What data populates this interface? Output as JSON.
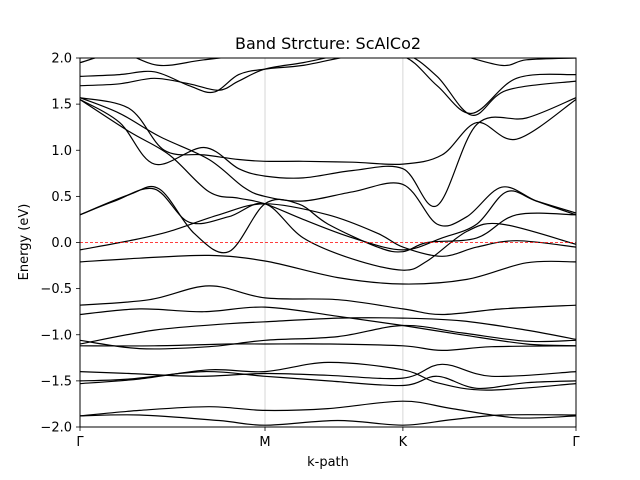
{
  "chart_data": {
    "type": "line",
    "title": "Band Strcture: ScAlCo2",
    "xlabel": "k-path",
    "ylabel": "Energy (eV)",
    "xlim": [
      0,
      1
    ],
    "ylim": [
      -2.0,
      2.0
    ],
    "x_ticks": [
      {
        "pos": 0.0,
        "label": "Γ"
      },
      {
        "pos": 0.373,
        "label": "M"
      },
      {
        "pos": 0.651,
        "label": "K"
      },
      {
        "pos": 1.0,
        "label": "Γ"
      }
    ],
    "y_ticks": [
      {
        "value": 2.0,
        "label": "2.0"
      },
      {
        "value": 1.5,
        "label": "1.5"
      },
      {
        "value": 1.0,
        "label": "1.0"
      },
      {
        "value": 0.5,
        "label": "0.5"
      },
      {
        "value": 0.0,
        "label": "0.0"
      },
      {
        "value": -0.5,
        "label": "−0.5"
      },
      {
        "value": -1.0,
        "label": "−1.0"
      },
      {
        "value": -1.5,
        "label": "−1.5"
      },
      {
        "value": -2.0,
        "label": "−2.0"
      }
    ],
    "fermi_level": 0.0,
    "fermi_color": "#ff0000",
    "band_color": "#000000",
    "grid_color": "#cccccc",
    "series": [
      {
        "name": "band-1",
        "x": [
          0,
          0.12,
          0.28,
          0.373,
          0.52,
          0.651,
          0.75,
          0.85,
          1.0
        ],
        "y": [
          -1.88,
          -1.87,
          -1.93,
          -1.98,
          -1.93,
          -1.98,
          -1.92,
          -1.87,
          -1.87
        ]
      },
      {
        "name": "band-2",
        "x": [
          0,
          0.12,
          0.26,
          0.373,
          0.5,
          0.651,
          0.75,
          0.88,
          1.0
        ],
        "y": [
          -1.88,
          -1.82,
          -1.78,
          -1.82,
          -1.8,
          -1.72,
          -1.8,
          -1.9,
          -1.88
        ]
      },
      {
        "name": "band-3",
        "x": [
          0,
          0.1,
          0.25,
          0.373,
          0.5,
          0.651,
          0.72,
          0.8,
          0.9,
          1.0
        ],
        "y": [
          -1.5,
          -1.48,
          -1.4,
          -1.45,
          -1.5,
          -1.55,
          -1.45,
          -1.58,
          -1.52,
          -1.5
        ]
      },
      {
        "name": "band-4",
        "x": [
          0,
          0.1,
          0.24,
          0.373,
          0.5,
          0.651,
          0.73,
          0.83,
          1.0
        ],
        "y": [
          -1.4,
          -1.42,
          -1.45,
          -1.42,
          -1.44,
          -1.47,
          -1.32,
          -1.45,
          -1.4
        ]
      },
      {
        "name": "band-5",
        "x": [
          0,
          0.12,
          0.26,
          0.373,
          0.5,
          0.651,
          0.72,
          0.82,
          1.0
        ],
        "y": [
          -1.53,
          -1.48,
          -1.38,
          -1.4,
          -1.3,
          -1.38,
          -1.52,
          -1.6,
          -1.53
        ]
      },
      {
        "name": "band-6",
        "x": [
          0,
          0.15,
          0.3,
          0.373,
          0.5,
          0.651,
          0.73,
          0.83,
          1.0
        ],
        "y": [
          -1.12,
          -1.12,
          -1.1,
          -1.1,
          -1.1,
          -1.12,
          -1.17,
          -1.13,
          -1.12
        ]
      },
      {
        "name": "band-7",
        "x": [
          0,
          0.12,
          0.26,
          0.373,
          0.52,
          0.651,
          0.77,
          0.9,
          1.0
        ],
        "y": [
          -1.06,
          -1.15,
          -1.13,
          -1.06,
          -1.02,
          -0.9,
          -0.98,
          -1.07,
          -1.06
        ]
      },
      {
        "name": "band-8",
        "x": [
          0,
          0.15,
          0.3,
          0.373,
          0.52,
          0.651,
          0.77,
          0.9,
          1.0
        ],
        "y": [
          -1.1,
          -0.95,
          -0.88,
          -0.86,
          -0.82,
          -0.82,
          -0.85,
          -0.95,
          -1.05
        ]
      },
      {
        "name": "band-9",
        "x": [
          0,
          0.12,
          0.25,
          0.373,
          0.52,
          0.651,
          0.77,
          0.9,
          1.0
        ],
        "y": [
          -0.78,
          -0.72,
          -0.75,
          -0.7,
          -0.8,
          -0.9,
          -1.0,
          -1.1,
          -1.12
        ]
      },
      {
        "name": "band-10",
        "x": [
          0,
          0.14,
          0.26,
          0.373,
          0.52,
          0.651,
          0.73,
          0.85,
          1.0
        ],
        "y": [
          -0.68,
          -0.62,
          -0.47,
          -0.6,
          -0.62,
          -0.72,
          -0.78,
          -0.72,
          -0.68
        ]
      },
      {
        "name": "band-11",
        "x": [
          0,
          0.12,
          0.26,
          0.373,
          0.52,
          0.651,
          0.78,
          0.9,
          1.0
        ],
        "y": [
          -0.21,
          -0.17,
          -0.14,
          -0.2,
          -0.38,
          -0.45,
          -0.4,
          -0.22,
          -0.21
        ]
      },
      {
        "name": "band-12",
        "x": [
          0,
          0.1,
          0.18,
          0.28,
          0.373,
          0.5,
          0.6,
          0.651,
          0.73,
          0.8,
          0.88,
          1.0
        ],
        "y": [
          -0.08,
          0.02,
          0.12,
          0.3,
          0.42,
          0.3,
          0.1,
          -0.05,
          -0.15,
          -0.05,
          0.02,
          -0.05
        ]
      },
      {
        "name": "band-13",
        "x": [
          0,
          0.07,
          0.15,
          0.22,
          0.3,
          0.373,
          0.45,
          0.55,
          0.651,
          0.7,
          0.78,
          0.85,
          1.0
        ],
        "y": [
          0.3,
          0.45,
          0.58,
          0.22,
          0.28,
          0.42,
          0.05,
          -0.18,
          -0.3,
          -0.2,
          0.12,
          0.2,
          -0.02
        ]
      },
      {
        "name": "band-14",
        "x": [
          0,
          0.1,
          0.16,
          0.23,
          0.3,
          0.373,
          0.44,
          0.5,
          0.6,
          0.651,
          0.7,
          0.8,
          0.88,
          1.0
        ],
        "y": [
          0.3,
          0.52,
          0.58,
          0.1,
          -0.1,
          0.42,
          0.42,
          0.2,
          -0.05,
          -0.1,
          0.0,
          0.05,
          0.3,
          0.3
        ]
      },
      {
        "name": "band-15",
        "x": [
          0,
          0.1,
          0.18,
          0.26,
          0.32,
          0.373,
          0.45,
          0.55,
          0.651,
          0.73,
          0.8,
          0.86,
          0.92,
          1.0
        ],
        "y": [
          1.55,
          1.2,
          0.95,
          0.55,
          0.48,
          0.42,
          0.25,
          0.05,
          -0.08,
          0.05,
          0.2,
          0.55,
          0.45,
          0.32
        ]
      },
      {
        "name": "band-16",
        "x": [
          0,
          0.08,
          0.16,
          0.26,
          0.33,
          0.373,
          0.45,
          0.55,
          0.651,
          0.72,
          0.78,
          0.85,
          0.92,
          1.0
        ],
        "y": [
          1.57,
          1.4,
          1.15,
          0.9,
          0.6,
          0.5,
          0.45,
          0.55,
          0.63,
          0.2,
          0.28,
          0.6,
          0.45,
          0.3
        ]
      },
      {
        "name": "band-17",
        "x": [
          0,
          0.08,
          0.15,
          0.25,
          0.32,
          0.373,
          0.45,
          0.55,
          0.651,
          0.72,
          0.8,
          0.9,
          1.0
        ],
        "y": [
          1.55,
          1.3,
          0.85,
          1.03,
          0.8,
          0.72,
          0.7,
          0.78,
          0.8,
          0.4,
          1.28,
          1.35,
          1.57
        ]
      },
      {
        "name": "band-18",
        "x": [
          0,
          0.1,
          0.17,
          0.25,
          0.32,
          0.373,
          0.45,
          0.55,
          0.651,
          0.73,
          0.8,
          0.88,
          1.0
        ],
        "y": [
          1.57,
          1.45,
          1.0,
          0.95,
          0.9,
          0.88,
          0.88,
          0.87,
          0.85,
          0.95,
          1.3,
          1.12,
          1.55
        ]
      },
      {
        "name": "band-19",
        "x": [
          0,
          0.08,
          0.15,
          0.22,
          0.28,
          0.32,
          0.373,
          0.45,
          0.55,
          0.651,
          0.72,
          0.79,
          0.86,
          1.0
        ],
        "y": [
          1.7,
          1.72,
          1.78,
          1.72,
          1.65,
          1.75,
          1.88,
          1.95,
          2.05,
          2.05,
          1.8,
          1.38,
          1.65,
          1.75
        ]
      },
      {
        "name": "band-20",
        "x": [
          0,
          0.08,
          0.15,
          0.22,
          0.27,
          0.32,
          0.373,
          0.45,
          0.55,
          0.651,
          0.72,
          0.79,
          0.88,
          1.0
        ],
        "y": [
          1.8,
          1.82,
          1.85,
          1.7,
          1.63,
          1.82,
          1.88,
          1.92,
          2.02,
          2.02,
          1.7,
          1.4,
          1.78,
          1.82
        ]
      },
      {
        "name": "band-21",
        "x": [
          0,
          0.08,
          0.16,
          0.25,
          0.373,
          0.5,
          0.651,
          0.75,
          0.85,
          0.9,
          1.0
        ],
        "y": [
          1.95,
          2.05,
          1.92,
          1.98,
          2.05,
          2.1,
          2.1,
          2.05,
          1.92,
          1.98,
          2.0
        ]
      }
    ]
  }
}
